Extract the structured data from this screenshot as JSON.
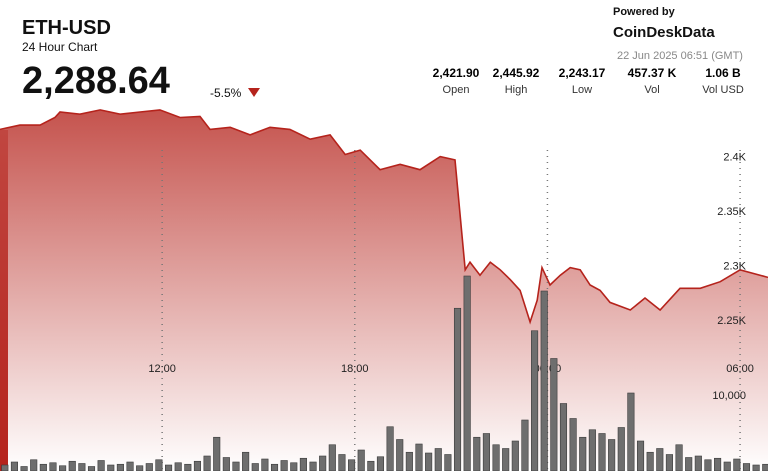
{
  "header": {
    "title": "ETH-USD",
    "subtitle": "24 Hour Chart",
    "price": "2,288.64",
    "change": "-5.5%",
    "powered": "Powered by",
    "brand": "CoinDeskData",
    "timestamp": "22 Jun 2025 06:51 (GMT)"
  },
  "stats": [
    {
      "value": "2,421.90",
      "label": "Open"
    },
    {
      "value": "2,445.92",
      "label": "High"
    },
    {
      "value": "2,243.17",
      "label": "Low"
    },
    {
      "value": "457.37 K",
      "label": "Vol"
    },
    {
      "value": "1.06 B",
      "label": "Vol USD"
    }
  ],
  "chart_data": [
    {
      "type": "area",
      "color": "#b5231c",
      "fill": "#c24a44",
      "x": [
        6.95,
        7.57,
        8.2,
        8.66,
        8.82,
        9.44,
        10.07,
        10.69,
        11.31,
        11.93,
        12.56,
        13.18,
        13.49,
        14.12,
        14.74,
        15.36,
        15.98,
        16.61,
        17.23,
        17.7,
        18.17,
        18.79,
        19.41,
        20.03,
        20.66,
        21.12,
        21.44,
        21.59,
        21.9,
        22.22,
        22.53,
        22.84,
        23.15,
        23.46,
        23.68,
        23.83,
        24.08,
        24.4,
        24.71,
        25.02,
        25.33,
        25.64,
        25.95,
        26.58,
        27.04,
        27.51,
        28.13,
        28.76,
        29.38,
        30,
        30.87
      ],
      "values": [
        2426,
        2430,
        2430,
        2437,
        2442,
        2440,
        2444,
        2440,
        2442,
        2444,
        2437,
        2438,
        2426,
        2428,
        2421,
        2428,
        2426,
        2417,
        2421,
        2403,
        2407,
        2389,
        2394,
        2389,
        2401,
        2398,
        2297,
        2304,
        2292,
        2304,
        2297,
        2288,
        2278,
        2249,
        2269,
        2299,
        2283,
        2292,
        2299,
        2297,
        2283,
        2278,
        2267,
        2260,
        2271,
        2260,
        2280,
        2280,
        2286,
        2297,
        2290
      ],
      "xlim": [
        6.95,
        30.87
      ],
      "xticks": [
        {
          "value": 12,
          "label": "12:00"
        },
        {
          "value": 18,
          "label": "18:00"
        },
        {
          "value": 24,
          "label": "00:00"
        },
        {
          "value": 30,
          "label": "06:00"
        }
      ],
      "ylim": [
        2112,
        2545
      ],
      "yticks": [
        {
          "value": 2250,
          "label": "2.25K"
        },
        {
          "value": 2300,
          "label": "2.3K"
        },
        {
          "value": 2350,
          "label": "2.35K"
        },
        {
          "value": 2400,
          "label": "2.4K"
        }
      ],
      "grid": true
    },
    {
      "type": "bar",
      "color": "#6e6e6e",
      "x": [
        7.1,
        7.4,
        7.7,
        8,
        8.3,
        8.6,
        8.9,
        9.2,
        9.5,
        9.8,
        10.1,
        10.4,
        10.7,
        11,
        11.3,
        11.6,
        11.9,
        12.2,
        12.5,
        12.8,
        13.1,
        13.4,
        13.7,
        14,
        14.3,
        14.6,
        14.9,
        15.2,
        15.5,
        15.8,
        16.1,
        16.4,
        16.7,
        17,
        17.3,
        17.6,
        17.9,
        18.2,
        18.5,
        18.8,
        19.1,
        19.4,
        19.7,
        20,
        20.3,
        20.6,
        20.9,
        21.2,
        21.5,
        21.8,
        22.1,
        22.4,
        22.7,
        23,
        23.3,
        23.6,
        23.9,
        24.2,
        24.5,
        24.8,
        25.1,
        25.4,
        25.7,
        26,
        26.3,
        26.6,
        26.9,
        27.2,
        27.5,
        27.8,
        28.1,
        28.4,
        28.7,
        29,
        29.3,
        29.6,
        29.9,
        30.2,
        30.5,
        30.8
      ],
      "values": [
        800,
        1200,
        600,
        1500,
        900,
        1100,
        700,
        1300,
        1000,
        600,
        1400,
        800,
        900,
        1200,
        700,
        1000,
        1500,
        800,
        1100,
        900,
        1300,
        2000,
        4500,
        1800,
        1200,
        2500,
        1000,
        1600,
        900,
        1400,
        1100,
        1700,
        1200,
        2000,
        3500,
        2200,
        1500,
        2800,
        1300,
        1900,
        5900,
        4200,
        2500,
        3600,
        2400,
        3000,
        2200,
        21700,
        26000,
        4500,
        5000,
        3500,
        3000,
        4000,
        6800,
        18700,
        24000,
        15000,
        9000,
        7000,
        4500,
        5500,
        5000,
        4200,
        5800,
        10400,
        4000,
        2500,
        3000,
        2200,
        3500,
        1800,
        2000,
        1500,
        1700,
        1200,
        1600,
        1000,
        800,
        900
      ],
      "xlim": [
        6.95,
        30.87
      ],
      "ylim": [
        0,
        62800
      ],
      "yticks": [
        {
          "value": 10000,
          "label": "10,000"
        }
      ]
    }
  ]
}
